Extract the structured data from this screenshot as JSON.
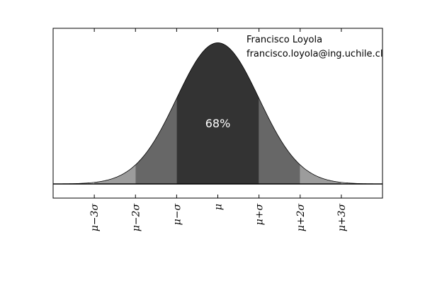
{
  "chart_data": {
    "type": "area",
    "title": "",
    "xlabel": "",
    "ylabel": "",
    "xlim": [
      -4,
      4
    ],
    "ylim": [
      -0.04,
      0.44
    ],
    "grid": false,
    "distribution": "normal",
    "mean": 0,
    "sigma": 1,
    "bands": [
      {
        "from": -3,
        "to": -2,
        "color": "#9c9c9c"
      },
      {
        "from": -2,
        "to": -1,
        "color": "#676767"
      },
      {
        "from": -1,
        "to": 1,
        "color": "#333333"
      },
      {
        "from": 1,
        "to": 2,
        "color": "#676767"
      },
      {
        "from": 2,
        "to": 3,
        "color": "#9c9c9c"
      }
    ],
    "tick_positions": [
      -3,
      -2,
      -1,
      0,
      1,
      2,
      3
    ],
    "tick_labels": [
      "μ−3σ",
      "μ−2σ",
      "μ−σ",
      "μ",
      "μ+σ",
      "μ+2σ",
      "μ+3σ"
    ],
    "center_annotation": "68%",
    "author_annotations": [
      "Francisco Loyola",
      "francisco.loyola@ing.uchile.cl"
    ]
  }
}
